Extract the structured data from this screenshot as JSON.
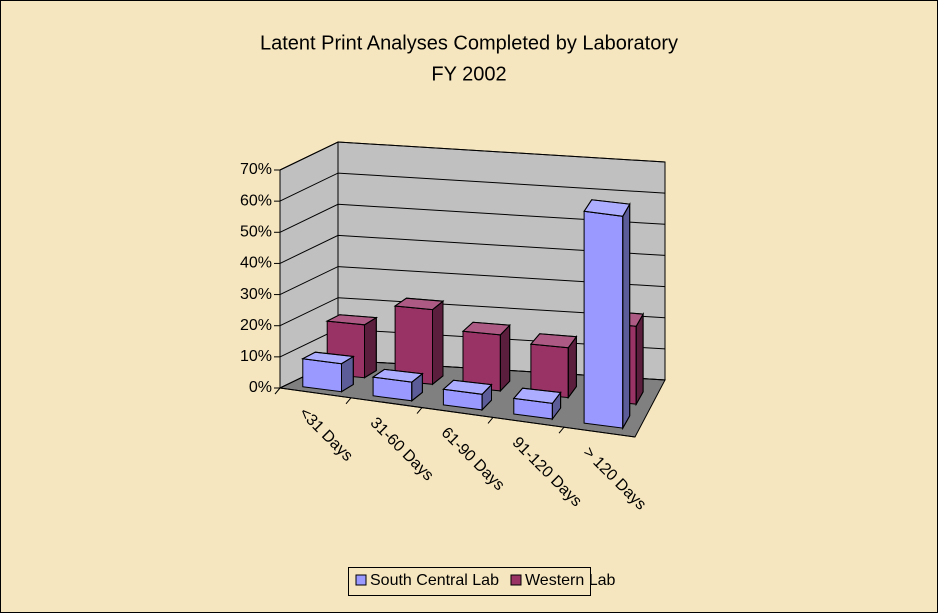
{
  "chart_data": {
    "type": "bar3d",
    "title": "Latent Print Analyses Completed by Laboratory",
    "subtitle": "FY 2002",
    "categories": [
      "<31 Days",
      "31-60 Days",
      "61-90 Days",
      "91-120 Days",
      "> 120 Days"
    ],
    "series": [
      {
        "name": "South Central Lab",
        "color": "#9999ff",
        "values": [
          9,
          6,
          5,
          5,
          68
        ]
      },
      {
        "name": "Western Lab",
        "color": "#993366",
        "values": [
          17,
          24,
          18,
          16,
          25
        ]
      }
    ],
    "ylim": [
      0,
      70
    ],
    "yticks": [
      {
        "value": 0,
        "label": "0%"
      },
      {
        "value": 10,
        "label": "10%"
      },
      {
        "value": 20,
        "label": "20%"
      },
      {
        "value": 30,
        "label": "30%"
      },
      {
        "value": 40,
        "label": "40%"
      },
      {
        "value": 50,
        "label": "50%"
      },
      {
        "value": 60,
        "label": "60%"
      },
      {
        "value": 70,
        "label": "70%"
      }
    ],
    "grid": true,
    "legend": "bottom"
  }
}
